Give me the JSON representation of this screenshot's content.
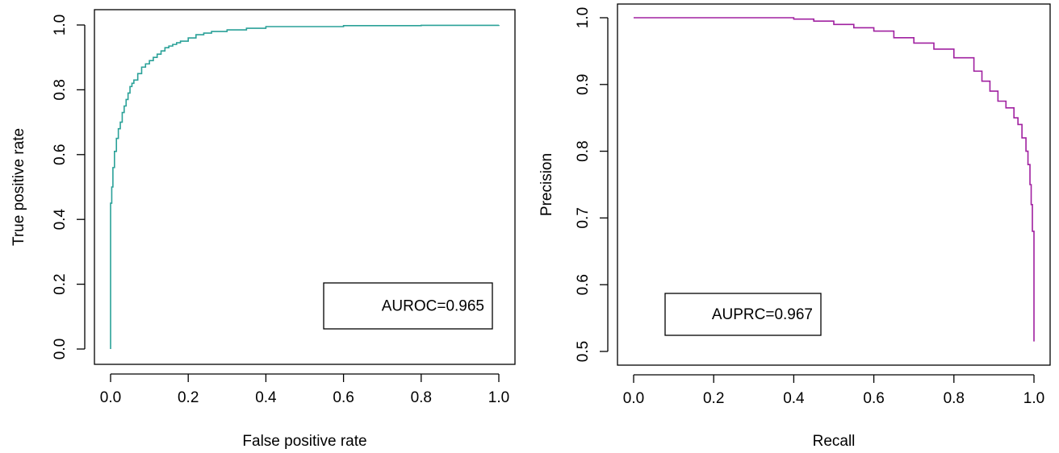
{
  "chart_data": [
    {
      "type": "line",
      "xlabel": "False positive rate",
      "ylabel": "True positive rate",
      "xlim": [
        0,
        1
      ],
      "ylim": [
        0,
        1
      ],
      "xticks": [
        0,
        0.2,
        0.4,
        0.6,
        0.8,
        1
      ],
      "yticks": [
        0,
        0.2,
        0.4,
        0.6,
        0.8,
        1
      ],
      "xtick_labels": [
        "0.0",
        "0.2",
        "0.4",
        "0.6",
        "0.8",
        "1.0"
      ],
      "ytick_labels": [
        "0.0",
        "0.2",
        "0.4",
        "0.6",
        "0.8",
        "1.0"
      ],
      "grid": false,
      "annotation": "AUROC=0.965",
      "annotation_position": "bottom-right",
      "color": "#2aa198",
      "series": [
        {
          "x": [
            0,
            0,
            0.003,
            0.003,
            0.006,
            0.006,
            0.01,
            0.01,
            0.015,
            0.015,
            0.02,
            0.02,
            0.025,
            0.025,
            0.03,
            0.03,
            0.035,
            0.04,
            0.045,
            0.05,
            0.055,
            0.06,
            0.07,
            0.08,
            0.09,
            0.1,
            0.11,
            0.12,
            0.13,
            0.14,
            0.15,
            0.16,
            0.17,
            0.18,
            0.2,
            0.22,
            0.24,
            0.26,
            0.3,
            0.35,
            0.4,
            0.6,
            0.8,
            1.0
          ],
          "y": [
            0,
            0.45,
            0.45,
            0.5,
            0.5,
            0.56,
            0.56,
            0.61,
            0.61,
            0.65,
            0.65,
            0.68,
            0.68,
            0.7,
            0.7,
            0.73,
            0.75,
            0.77,
            0.79,
            0.81,
            0.82,
            0.83,
            0.85,
            0.87,
            0.88,
            0.89,
            0.9,
            0.91,
            0.92,
            0.93,
            0.935,
            0.94,
            0.945,
            0.95,
            0.96,
            0.97,
            0.975,
            0.98,
            0.985,
            0.99,
            0.995,
            0.998,
            0.999,
            1.0
          ]
        }
      ]
    },
    {
      "type": "line",
      "xlabel": "Recall",
      "ylabel": "Precision",
      "xlim": [
        0,
        1
      ],
      "ylim": [
        0.5,
        1
      ],
      "xticks": [
        0,
        0.2,
        0.4,
        0.6,
        0.8,
        1
      ],
      "yticks": [
        0.5,
        0.6,
        0.7,
        0.8,
        0.9,
        1
      ],
      "xtick_labels": [
        "0.0",
        "0.2",
        "0.4",
        "0.6",
        "0.8",
        "1.0"
      ],
      "ytick_labels": [
        "0.5",
        "0.6",
        "0.7",
        "0.8",
        "0.9",
        "1.0"
      ],
      "grid": false,
      "annotation": "AUPRC=0.967",
      "annotation_position": "bottom-left",
      "color": "#a020a0",
      "series": [
        {
          "x": [
            0,
            0.2,
            0.36,
            0.4,
            0.45,
            0.5,
            0.55,
            0.6,
            0.65,
            0.7,
            0.75,
            0.8,
            0.85,
            0.87,
            0.89,
            0.91,
            0.93,
            0.95,
            0.96,
            0.97,
            0.98,
            0.985,
            0.99,
            0.993,
            0.996,
            1.0,
            1.0
          ],
          "y": [
            1.0,
            1.0,
            1.0,
            0.998,
            0.995,
            0.99,
            0.985,
            0.98,
            0.97,
            0.962,
            0.953,
            0.94,
            0.92,
            0.905,
            0.89,
            0.875,
            0.865,
            0.85,
            0.84,
            0.82,
            0.8,
            0.78,
            0.75,
            0.72,
            0.68,
            0.63,
            0.515
          ]
        }
      ]
    }
  ]
}
